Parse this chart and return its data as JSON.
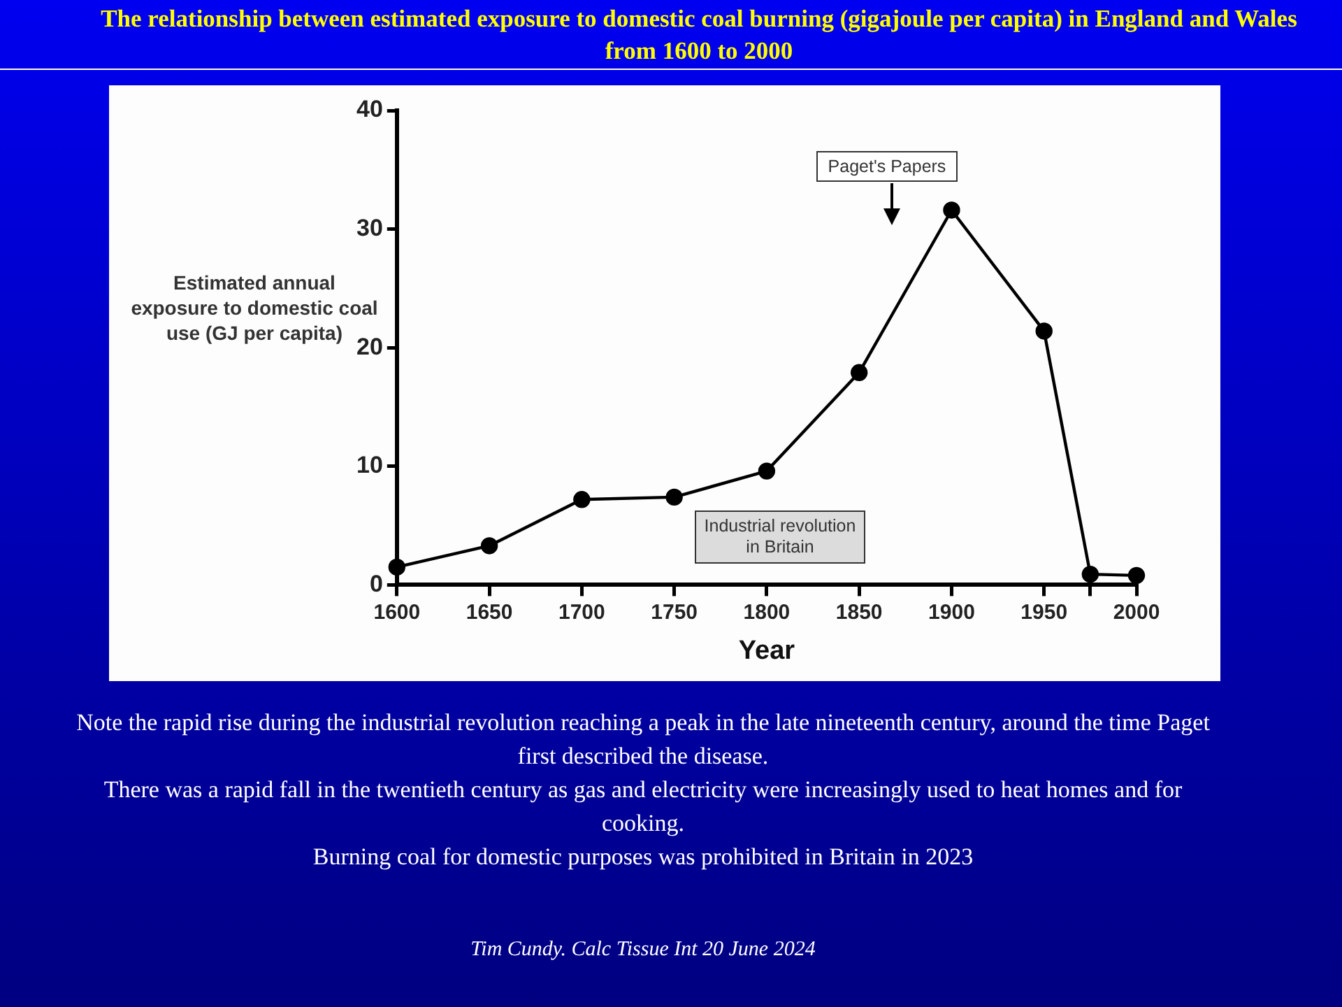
{
  "chart_data": {
    "type": "line",
    "title": "The relationship  between estimated exposure to domestic coal burning  (gigajoule per capita) in England  and Wales from 1600 to 2000",
    "xlabel": "Year",
    "ylabel": "Estimated annual exposure to domestic coal use (GJ per capita)",
    "x": [
      1600,
      1650,
      1700,
      1750,
      1800,
      1850,
      1900,
      1950,
      1975,
      2000
    ],
    "series": [
      {
        "color": "#000000",
        "values": [
          1.5,
          3.3,
          7.2,
          7.4,
          9.6,
          17.9,
          31.6,
          21.4,
          0.9,
          0.8
        ]
      }
    ],
    "xlim": [
      1600,
      2000
    ],
    "xticks": [
      1600,
      1650,
      1700,
      1750,
      1800,
      1850,
      1900,
      1950,
      {
        "value": 1975,
        "label": null
      },
      2000
    ],
    "ylim": [
      0,
      40
    ],
    "yticks": [
      0,
      10,
      20,
      30,
      40
    ],
    "grid": false,
    "marker": "circle",
    "line_style": "solid",
    "annotations": [
      "Paget's Papers",
      "Industrial revolution in Britain",
      "Note the rapid rise during the industrial revolution reaching a peak in the late nineteenth century, around the time Paget first described  the disease.",
      "There was a rapid fall in the twentieth century as gas and electricity were increasingly  used to heat homes and for cooking.",
      "Burning coal for domestic purposes was prohibited in Britain in 2023",
      "Tim Cundy. Calc Tissue Int 20 June 2024"
    ]
  }
}
